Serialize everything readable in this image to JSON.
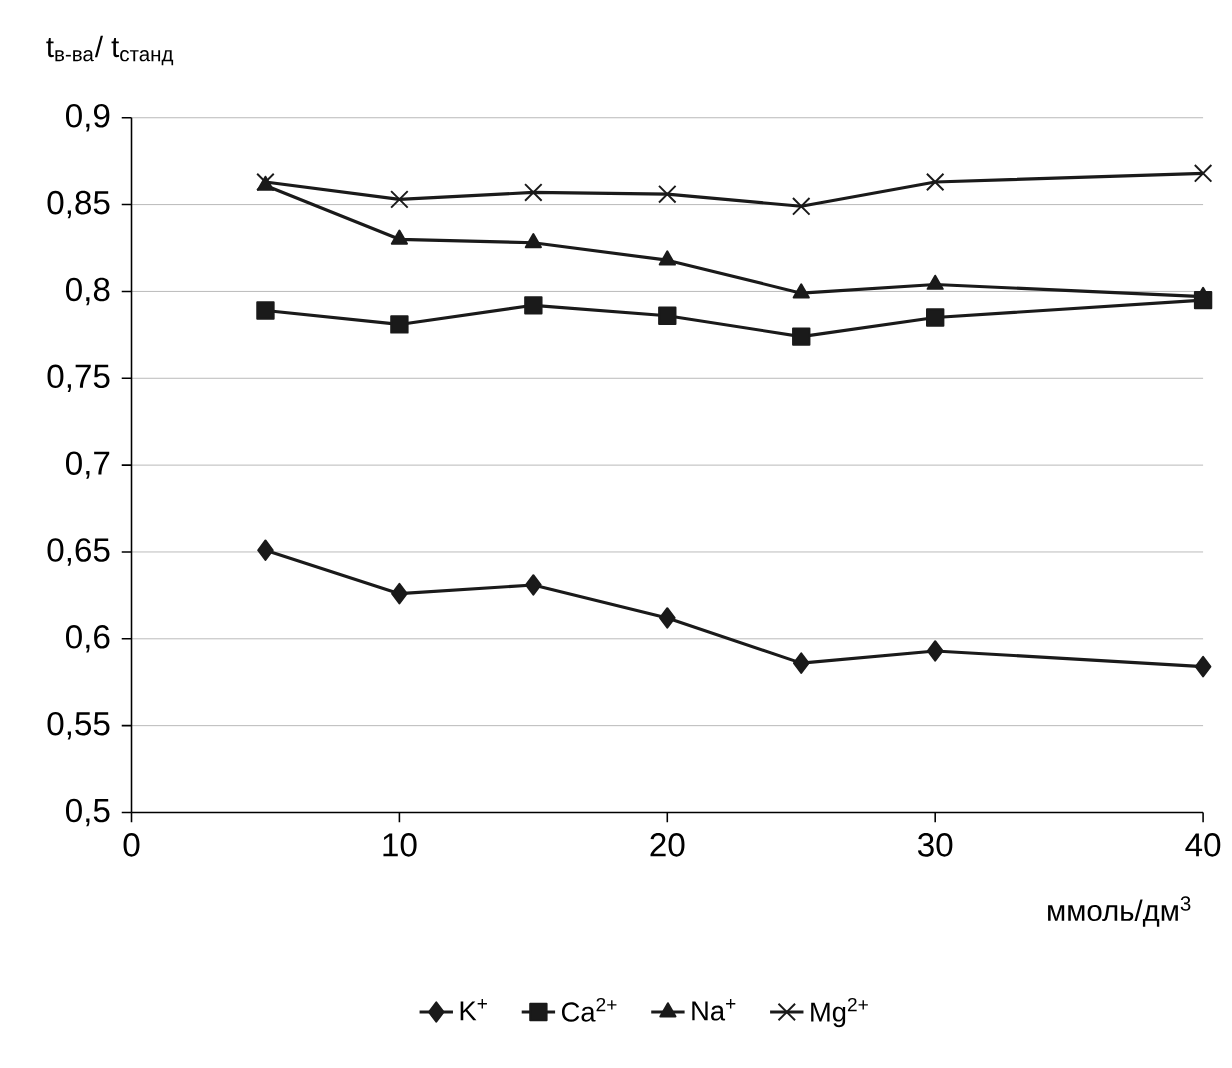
{
  "chart_data": {
    "type": "line",
    "xlabel": "ммоль/дм$^{3}$",
    "ylabel": "t$_{в-ва}$/ t$_{станд}$",
    "x": [
      5,
      10,
      15,
      20,
      25,
      30,
      40
    ],
    "series": [
      {
        "name": "K$^{+}$",
        "color": "#1a1a1a",
        "marker": "diamond",
        "values": [
          0.651,
          0.626,
          0.631,
          0.612,
          0.586,
          0.593,
          0.584
        ]
      },
      {
        "name": "Ca$^{2+}$",
        "color": "#1a1a1a",
        "marker": "square",
        "values": [
          0.789,
          0.781,
          0.792,
          0.786,
          0.774,
          0.785,
          0.795
        ]
      },
      {
        "name": "Na$^{+}$",
        "color": "#1a1a1a",
        "marker": "triangle",
        "values": [
          0.861,
          0.83,
          0.828,
          0.818,
          0.799,
          0.804,
          0.797
        ]
      },
      {
        "name": "Mg$^{2+}$",
        "color": "#1a1a1a",
        "marker": "cross",
        "values": [
          0.863,
          0.853,
          0.857,
          0.856,
          0.849,
          0.863,
          0.868
        ]
      }
    ],
    "xlim": [
      0,
      40
    ],
    "xticks": [
      0,
      10,
      20,
      30,
      40
    ],
    "ylim": [
      0.5,
      0.9
    ],
    "yticks": [
      {
        "value": 0.5,
        "label": "0,5"
      },
      {
        "value": 0.55,
        "label": "0,55"
      },
      {
        "value": 0.6,
        "label": "0,6"
      },
      {
        "value": 0.65,
        "label": "0,65"
      },
      {
        "value": 0.7,
        "label": "0,7"
      },
      {
        "value": 0.75,
        "label": "0,75"
      },
      {
        "value": 0.8,
        "label": "0,8"
      },
      {
        "value": 0.85,
        "label": "0,85"
      },
      {
        "value": 0.9,
        "label": "0,9"
      }
    ],
    "grid": "y",
    "legend": "bottom",
    "line_style": "solid"
  }
}
